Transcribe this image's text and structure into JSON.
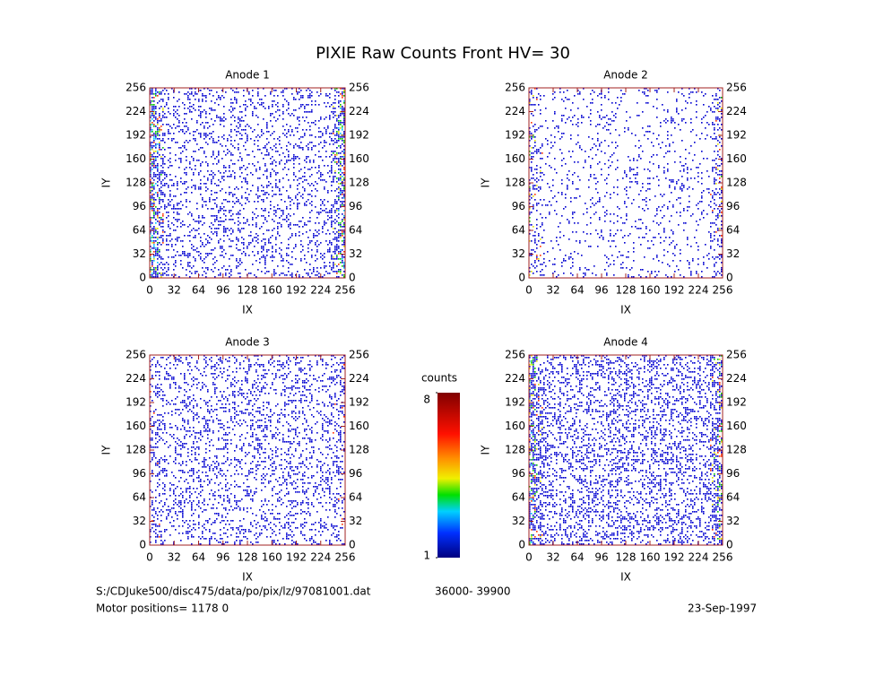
{
  "title": "PIXIE Raw Counts Front HV= 30",
  "chart_data": [
    {
      "type": "heatmap",
      "title": "Anode 1",
      "x_label": "IX",
      "y_label": "IY",
      "xlim": [
        0,
        256
      ],
      "ylim": [
        0,
        256
      ],
      "xticks": [
        0,
        32,
        64,
        96,
        128,
        160,
        192,
        224,
        256
      ],
      "yticks": [
        0,
        32,
        64,
        96,
        128,
        160,
        192,
        224,
        256
      ]
    },
    {
      "type": "heatmap",
      "title": "Anode 2",
      "x_label": "IX",
      "y_label": "IY",
      "xlim": [
        0,
        256
      ],
      "ylim": [
        0,
        256
      ],
      "xticks": [
        0,
        32,
        64,
        96,
        128,
        160,
        192,
        224,
        256
      ],
      "yticks": [
        0,
        32,
        64,
        96,
        128,
        160,
        192,
        224,
        256
      ]
    },
    {
      "type": "heatmap",
      "title": "Anode 3",
      "x_label": "IX",
      "y_label": "IY",
      "xlim": [
        0,
        256
      ],
      "ylim": [
        0,
        256
      ],
      "xticks": [
        0,
        32,
        64,
        96,
        128,
        160,
        192,
        224,
        256
      ],
      "yticks": [
        0,
        32,
        64,
        96,
        128,
        160,
        192,
        224,
        256
      ]
    },
    {
      "type": "heatmap",
      "title": "Anode 4",
      "x_label": "IX",
      "y_label": "IY",
      "xlim": [
        0,
        256
      ],
      "ylim": [
        0,
        256
      ],
      "xticks": [
        0,
        32,
        64,
        96,
        128,
        160,
        192,
        224,
        256
      ],
      "yticks": [
        0,
        32,
        64,
        96,
        128,
        160,
        192,
        224,
        256
      ]
    }
  ],
  "colorbar": {
    "label": "counts",
    "lim": [
      1,
      8
    ],
    "ticks": [
      1,
      8
    ]
  },
  "footer": {
    "file": "S:/CDJuke500/disc475/data/po/pix/lz/97081001.dat",
    "range": "36000- 39900",
    "motor": "Motor positions= 1178 0",
    "date": "23-Sep-1997"
  }
}
